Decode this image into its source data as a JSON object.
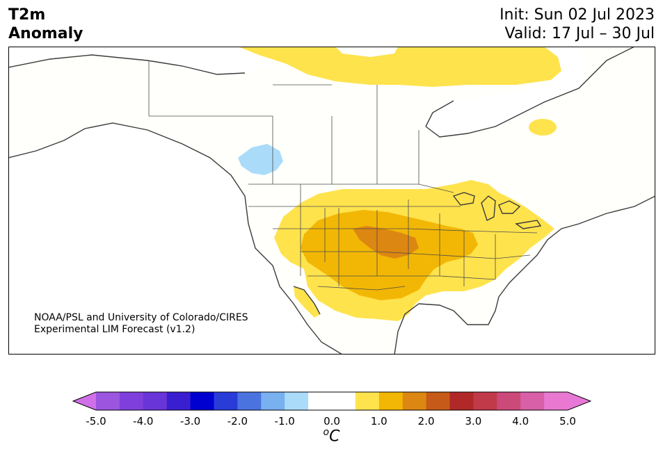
{
  "header": {
    "variable": "T2m",
    "subtitle": "Anomaly",
    "init": "Init: Sun 02 Jul 2023",
    "valid": "Valid: 17 Jul – 30 Jul"
  },
  "credit": {
    "line1": "NOAA/PSL and University of Colorado/CIRES",
    "line2": "Experimental LIM Forecast (v1.2)"
  },
  "colorbar": {
    "unit_base": "C",
    "unit_sup": "o",
    "ticks": [
      "-5.0",
      "-4.0",
      "-3.0",
      "-2.0",
      "-1.0",
      "0.0",
      "1.0",
      "2.0",
      "3.0",
      "4.0",
      "5.0"
    ],
    "bins": [
      {
        "from": -5.0,
        "to": -4.5,
        "color": "#9b55df"
      },
      {
        "from": -4.5,
        "to": -4.0,
        "color": "#7f3fdc"
      },
      {
        "from": -4.0,
        "to": -3.5,
        "color": "#6a35d8"
      },
      {
        "from": -3.5,
        "to": -3.0,
        "color": "#3a1fd0"
      },
      {
        "from": -3.0,
        "to": -2.5,
        "color": "#0000d0"
      },
      {
        "from": -2.5,
        "to": -2.0,
        "color": "#2a3cd8"
      },
      {
        "from": -2.0,
        "to": -1.5,
        "color": "#4a73e0"
      },
      {
        "from": -1.5,
        "to": -1.0,
        "color": "#78b0f0"
      },
      {
        "from": -1.0,
        "to": -0.5,
        "color": "#aadcfa"
      },
      {
        "from": -0.5,
        "to": 0.0,
        "color": "#ffffff"
      },
      {
        "from": 0.0,
        "to": 0.5,
        "color": "#ffffff"
      },
      {
        "from": 0.5,
        "to": 1.0,
        "color": "#ffe34d"
      },
      {
        "from": 1.0,
        "to": 1.5,
        "color": "#f2b705"
      },
      {
        "from": 1.5,
        "to": 2.0,
        "color": "#dc8712"
      },
      {
        "from": 2.0,
        "to": 2.5,
        "color": "#c65a18"
      },
      {
        "from": 2.5,
        "to": 3.0,
        "color": "#b02828"
      },
      {
        "from": 3.0,
        "to": 3.5,
        "color": "#c03a4a"
      },
      {
        "from": 3.5,
        "to": 4.0,
        "color": "#cc4a7a"
      },
      {
        "from": 4.0,
        "to": 4.5,
        "color": "#d860a8"
      },
      {
        "from": 4.5,
        "to": 5.0,
        "color": "#e878d0"
      }
    ],
    "under_color": "#d070e8",
    "over_color": "#e878d8"
  },
  "map_colors": {
    "land": "#fffffb",
    "ocean": "#ffffff",
    "coast": "#3a3a3a",
    "border": "#4a4a4a"
  }
}
